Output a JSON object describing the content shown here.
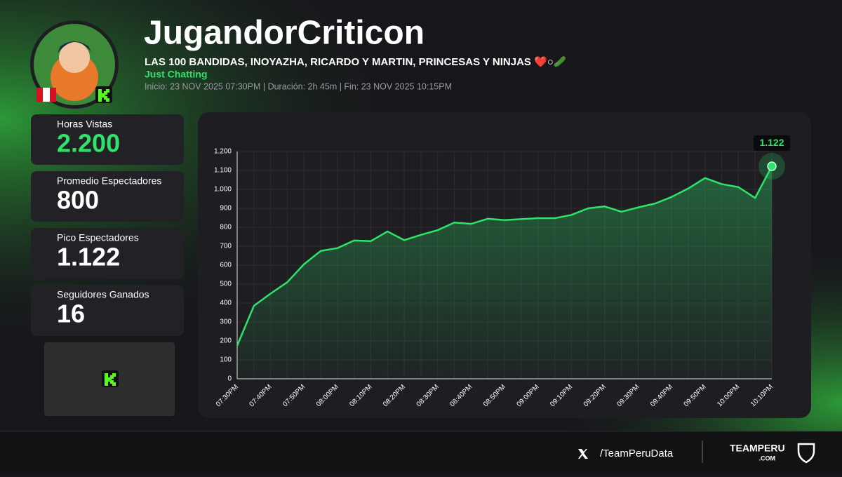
{
  "header": {
    "name": "JugandorCriticon",
    "subtitle": "LAS 100 BANDIDAS, INOYAZHA, RICARDO Y MARTIN, PRINCESAS Y NINJAS ❤️○🥒",
    "category": "Just Chatting",
    "meta": "Inicio: 23 NOV 2025 07:30PM  |  Duración: 2h 45m  |  Fin: 23 NOV 2025 10:15PM"
  },
  "stats": [
    {
      "label": "Horas Vistas",
      "value": "2.200"
    },
    {
      "label": "Promedio Espectadores",
      "value": "800"
    },
    {
      "label": "Pico Espectadores",
      "value": "1.122"
    },
    {
      "label": "Seguidores Ganados",
      "value": "16"
    }
  ],
  "chart_data": {
    "type": "line",
    "color": "#2fe36a",
    "grid": true,
    "categories": [
      "07:30PM",
      null,
      "07:40PM",
      null,
      "07:50PM",
      null,
      "08:00PM",
      null,
      "08:10PM",
      null,
      "08:20PM",
      null,
      "08:30PM",
      null,
      "08:40PM",
      null,
      "08:50PM",
      null,
      "09:00PM",
      null,
      "09:10PM",
      null,
      "09:20PM",
      null,
      "09:30PM",
      null,
      "09:40PM",
      null,
      "09:50PM",
      null,
      "10:00PM",
      null,
      "10:10PM"
    ],
    "values": [
      175,
      385,
      450,
      510,
      605,
      675,
      690,
      730,
      727,
      778,
      732,
      760,
      785,
      825,
      818,
      845,
      838,
      843,
      848,
      848,
      865,
      900,
      910,
      882,
      905,
      925,
      960,
      1005,
      1060,
      1028,
      1012,
      955,
      1122
    ],
    "value_labels": [
      null,
      null,
      null,
      null,
      null,
      null,
      null,
      null,
      null,
      null,
      null,
      null,
      null,
      null,
      null,
      null,
      null,
      null,
      null,
      null,
      null,
      null,
      null,
      null,
      null,
      null,
      null,
      null,
      null,
      null,
      null,
      null,
      "1.122"
    ],
    "ylim": [
      0,
      1200
    ],
    "yticks": [
      0,
      100,
      200,
      300,
      400,
      500,
      600,
      700,
      800,
      900,
      {
        "value": 1000,
        "label": "1.000"
      },
      {
        "value": 1100,
        "label": "1.100"
      },
      {
        "value": 1200,
        "label": "1.200"
      }
    ]
  },
  "footer": {
    "handle": "/TeamPeruData",
    "brand": "TEAMPERU",
    "brand_sub": ".COM"
  }
}
